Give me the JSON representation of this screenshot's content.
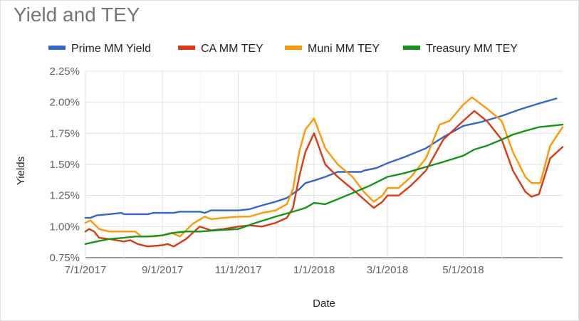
{
  "colors": {
    "prime": "#3366cc",
    "ca": "#dc3912",
    "muni": "#ff9900",
    "treasury": "#109618",
    "grid": "#e0e0e0",
    "baseline": "#333333"
  },
  "chart_data": {
    "type": "line",
    "title": "Yield and TEY",
    "xlabel": "Date",
    "ylabel": "Yields",
    "legend_position": "top",
    "grid": true,
    "ylim": [
      0.0075,
      0.0225
    ],
    "xlim": [
      "2017-07-01",
      "2018-07-20"
    ],
    "x_ticks": [
      "7/1/2017",
      "9/1/2017",
      "11/1/2017",
      "1/1/2018",
      "3/1/2018",
      "5/1/2018"
    ],
    "x_tick_dates": [
      "2017-07-01",
      "2017-09-01",
      "2017-11-01",
      "2018-01-01",
      "2018-03-01",
      "2018-05-01"
    ],
    "y_ticks": [
      "0.75%",
      "1.00%",
      "1.25%",
      "1.50%",
      "1.75%",
      "2.00%",
      "2.25%"
    ],
    "y_tick_values": [
      0.0075,
      0.01,
      0.0125,
      0.015,
      0.0175,
      0.02,
      0.0225
    ],
    "series": [
      {
        "name": "Prime MM Yield",
        "color_key": "prime",
        "points": [
          [
            "2017-07-01",
            0.0107
          ],
          [
            "2017-07-05",
            0.0107
          ],
          [
            "2017-07-10",
            0.0109
          ],
          [
            "2017-07-20",
            0.011
          ],
          [
            "2017-07-30",
            0.0111
          ],
          [
            "2017-08-01",
            0.011
          ],
          [
            "2017-08-20",
            0.011
          ],
          [
            "2017-08-25",
            0.0111
          ],
          [
            "2017-09-01",
            0.0111
          ],
          [
            "2017-09-10",
            0.0111
          ],
          [
            "2017-09-15",
            0.0112
          ],
          [
            "2017-10-01",
            0.0112
          ],
          [
            "2017-10-05",
            0.0111
          ],
          [
            "2017-10-10",
            0.0113
          ],
          [
            "2017-11-01",
            0.0113
          ],
          [
            "2017-11-10",
            0.0114
          ],
          [
            "2017-11-20",
            0.0117
          ],
          [
            "2017-12-01",
            0.012
          ],
          [
            "2017-12-10",
            0.0123
          ],
          [
            "2017-12-20",
            0.013
          ],
          [
            "2017-12-25",
            0.0135
          ],
          [
            "2018-01-01",
            0.0137
          ],
          [
            "2018-01-10",
            0.014
          ],
          [
            "2018-01-20",
            0.0144
          ],
          [
            "2018-02-05",
            0.0144
          ],
          [
            "2018-02-08",
            0.0144
          ],
          [
            "2018-02-10",
            0.0145
          ],
          [
            "2018-02-20",
            0.0147
          ],
          [
            "2018-03-01",
            0.0151
          ],
          [
            "2018-03-15",
            0.0156
          ],
          [
            "2018-04-01",
            0.0163
          ],
          [
            "2018-04-15",
            0.0172
          ],
          [
            "2018-05-01",
            0.0181
          ],
          [
            "2018-05-15",
            0.0184
          ],
          [
            "2018-06-01",
            0.0189
          ],
          [
            "2018-06-15",
            0.0194
          ],
          [
            "2018-07-01",
            0.0199
          ],
          [
            "2018-07-15",
            0.0203
          ]
        ]
      },
      {
        "name": "CA MM TEY",
        "color_key": "ca",
        "points": [
          [
            "2017-07-01",
            0.0096
          ],
          [
            "2017-07-04",
            0.0098
          ],
          [
            "2017-07-08",
            0.0096
          ],
          [
            "2017-07-12",
            0.0091
          ],
          [
            "2017-07-20",
            0.009
          ],
          [
            "2017-08-01",
            0.0088
          ],
          [
            "2017-08-06",
            0.0089
          ],
          [
            "2017-08-12",
            0.0086
          ],
          [
            "2017-08-20",
            0.0084
          ],
          [
            "2017-09-01",
            0.0085
          ],
          [
            "2017-09-05",
            0.0086
          ],
          [
            "2017-09-10",
            0.0084
          ],
          [
            "2017-09-20",
            0.009
          ],
          [
            "2017-10-01",
            0.01
          ],
          [
            "2017-10-10",
            0.0097
          ],
          [
            "2017-10-20",
            0.0098
          ],
          [
            "2017-11-01",
            0.01
          ],
          [
            "2017-11-10",
            0.0101
          ],
          [
            "2017-11-20",
            0.01
          ],
          [
            "2017-12-01",
            0.0103
          ],
          [
            "2017-12-10",
            0.0107
          ],
          [
            "2017-12-15",
            0.0115
          ],
          [
            "2017-12-20",
            0.014
          ],
          [
            "2017-12-25",
            0.016
          ],
          [
            "2018-01-01",
            0.0175
          ],
          [
            "2018-01-10",
            0.015
          ],
          [
            "2018-01-20",
            0.014
          ],
          [
            "2018-02-01",
            0.013
          ],
          [
            "2018-02-10",
            0.0122
          ],
          [
            "2018-02-18",
            0.0115
          ],
          [
            "2018-02-25",
            0.012
          ],
          [
            "2018-03-01",
            0.0125
          ],
          [
            "2018-03-10",
            0.0125
          ],
          [
            "2018-03-20",
            0.0133
          ],
          [
            "2018-04-01",
            0.0145
          ],
          [
            "2018-04-15",
            0.017
          ],
          [
            "2018-05-01",
            0.0185
          ],
          [
            "2018-05-10",
            0.0193
          ],
          [
            "2018-05-20",
            0.0185
          ],
          [
            "2018-06-01",
            0.017
          ],
          [
            "2018-06-10",
            0.0145
          ],
          [
            "2018-06-20",
            0.0128
          ],
          [
            "2018-06-25",
            0.0124
          ],
          [
            "2018-07-01",
            0.0126
          ],
          [
            "2018-07-10",
            0.0155
          ],
          [
            "2018-07-20",
            0.0164
          ]
        ]
      },
      {
        "name": "Muni MM TEY",
        "color_key": "muni",
        "points": [
          [
            "2017-07-01",
            0.0103
          ],
          [
            "2017-07-05",
            0.0105
          ],
          [
            "2017-07-12",
            0.0098
          ],
          [
            "2017-07-20",
            0.0096
          ],
          [
            "2017-08-01",
            0.0096
          ],
          [
            "2017-08-10",
            0.0096
          ],
          [
            "2017-08-15",
            0.0092
          ],
          [
            "2017-08-25",
            0.0092
          ],
          [
            "2017-09-01",
            0.0093
          ],
          [
            "2017-09-08",
            0.0095
          ],
          [
            "2017-09-15",
            0.0092
          ],
          [
            "2017-09-25",
            0.0102
          ],
          [
            "2017-10-05",
            0.0108
          ],
          [
            "2017-10-10",
            0.0106
          ],
          [
            "2017-10-20",
            0.0107
          ],
          [
            "2017-11-01",
            0.0108
          ],
          [
            "2017-11-10",
            0.0108
          ],
          [
            "2017-11-20",
            0.0111
          ],
          [
            "2017-12-01",
            0.0113
          ],
          [
            "2017-12-10",
            0.0118
          ],
          [
            "2017-12-15",
            0.013
          ],
          [
            "2017-12-20",
            0.016
          ],
          [
            "2017-12-25",
            0.0178
          ],
          [
            "2018-01-01",
            0.0187
          ],
          [
            "2018-01-10",
            0.0163
          ],
          [
            "2018-01-20",
            0.015
          ],
          [
            "2018-02-01",
            0.014
          ],
          [
            "2018-02-10",
            0.0128
          ],
          [
            "2018-02-18",
            0.012
          ],
          [
            "2018-02-25",
            0.0125
          ],
          [
            "2018-03-01",
            0.0131
          ],
          [
            "2018-03-10",
            0.0131
          ],
          [
            "2018-03-20",
            0.014
          ],
          [
            "2018-04-01",
            0.0155
          ],
          [
            "2018-04-12",
            0.0182
          ],
          [
            "2018-04-20",
            0.0185
          ],
          [
            "2018-05-01",
            0.0198
          ],
          [
            "2018-05-08",
            0.0204
          ],
          [
            "2018-05-20",
            0.0195
          ],
          [
            "2018-06-01",
            0.0185
          ],
          [
            "2018-06-10",
            0.016
          ],
          [
            "2018-06-20",
            0.014
          ],
          [
            "2018-06-25",
            0.0135
          ],
          [
            "2018-07-02",
            0.0135
          ],
          [
            "2018-07-10",
            0.0165
          ],
          [
            "2018-07-20",
            0.018
          ]
        ]
      },
      {
        "name": "Treasury MM TEY",
        "color_key": "treasury",
        "points": [
          [
            "2017-07-01",
            0.0086
          ],
          [
            "2017-07-10",
            0.0088
          ],
          [
            "2017-07-20",
            0.009
          ],
          [
            "2017-08-01",
            0.0091
          ],
          [
            "2017-08-10",
            0.0092
          ],
          [
            "2017-08-20",
            0.0092
          ],
          [
            "2017-09-01",
            0.0093
          ],
          [
            "2017-09-10",
            0.0095
          ],
          [
            "2017-09-20",
            0.0096
          ],
          [
            "2017-10-01",
            0.0096
          ],
          [
            "2017-10-15",
            0.0097
          ],
          [
            "2017-11-01",
            0.0098
          ],
          [
            "2017-11-15",
            0.0103
          ],
          [
            "2017-12-01",
            0.0108
          ],
          [
            "2017-12-15",
            0.0112
          ],
          [
            "2017-12-25",
            0.0115
          ],
          [
            "2018-01-01",
            0.0119
          ],
          [
            "2018-01-10",
            0.0118
          ],
          [
            "2018-01-20",
            0.0122
          ],
          [
            "2018-02-01",
            0.0127
          ],
          [
            "2018-02-15",
            0.0133
          ],
          [
            "2018-03-01",
            0.014
          ],
          [
            "2018-03-15",
            0.0143
          ],
          [
            "2018-04-01",
            0.0148
          ],
          [
            "2018-04-15",
            0.0152
          ],
          [
            "2018-05-01",
            0.0157
          ],
          [
            "2018-05-10",
            0.0162
          ],
          [
            "2018-05-20",
            0.0165
          ],
          [
            "2018-06-01",
            0.017
          ],
          [
            "2018-06-10",
            0.0174
          ],
          [
            "2018-06-20",
            0.0177
          ],
          [
            "2018-07-01",
            0.018
          ],
          [
            "2018-07-10",
            0.0181
          ],
          [
            "2018-07-20",
            0.0182
          ]
        ]
      }
    ]
  }
}
